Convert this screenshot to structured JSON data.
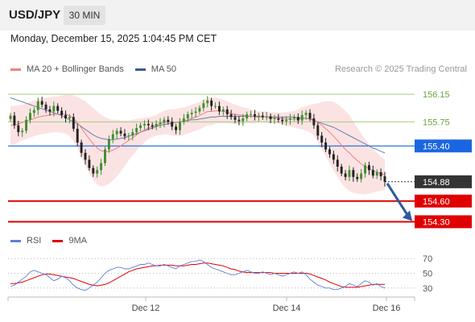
{
  "header": {
    "symbol": "USD/JPY",
    "timeframe": "30 MIN"
  },
  "timestamp": "Monday, December 15, 2025 1:04:45 PM CET",
  "legend": {
    "main": [
      {
        "label": "MA 20 + Bollinger Bands",
        "color": "#f08080"
      },
      {
        "label": "MA 50",
        "color": "#3c5a9a"
      }
    ],
    "rsi": [
      {
        "label": "RSI",
        "color": "#5b7fd6"
      },
      {
        "label": "9MA",
        "color": "#e00000"
      }
    ]
  },
  "copyright": "Research © 2025 Trading Central",
  "chart_data": [
    {
      "type": "candlestick",
      "ylim": [
        154.2,
        156.35
      ],
      "x_ticks": [
        "Dec 12",
        "Dec 14",
        "Dec 16"
      ],
      "levels": [
        {
          "value": 156.15,
          "label": "156.15",
          "kind": "resistance",
          "color": "#a8cc80"
        },
        {
          "value": 155.75,
          "label": "155.75",
          "kind": "resistance",
          "color": "#a8cc80"
        },
        {
          "value": 155.4,
          "label": "155.40",
          "kind": "pivot",
          "color": "#1a66e0"
        },
        {
          "value": 154.88,
          "label": "154.88",
          "kind": "last",
          "color": "#333333"
        },
        {
          "value": 154.6,
          "label": "154.60",
          "kind": "target",
          "color": "#e00000"
        },
        {
          "value": 154.3,
          "label": "154.30",
          "kind": "target",
          "color": "#e00000"
        }
      ],
      "close": [
        155.84,
        155.7,
        155.6,
        155.62,
        155.78,
        155.88,
        155.92,
        156.05,
        156.0,
        155.93,
        155.9,
        155.98,
        155.91,
        155.85,
        155.8,
        155.82,
        155.65,
        155.45,
        155.3,
        155.2,
        155.08,
        155.0,
        155.05,
        155.15,
        155.35,
        155.5,
        155.57,
        155.62,
        155.58,
        155.54,
        155.55,
        155.6,
        155.66,
        155.7,
        155.72,
        155.7,
        155.68,
        155.72,
        155.74,
        155.78,
        155.75,
        155.68,
        155.63,
        155.75,
        155.8,
        155.86,
        155.88,
        155.9,
        155.95,
        156.02,
        156.06,
        155.98,
        155.98,
        155.9,
        155.93,
        155.86,
        155.82,
        155.78,
        155.76,
        155.8,
        155.86,
        155.86,
        155.83,
        155.84,
        155.82,
        155.83,
        155.79,
        155.8,
        155.78,
        155.76,
        155.78,
        155.8,
        155.82,
        155.77,
        155.85,
        155.88,
        155.8,
        155.7,
        155.55,
        155.45,
        155.35,
        155.28,
        155.2,
        155.1,
        155.0,
        154.95,
        155.05,
        154.95,
        154.92,
        155.0,
        155.12,
        155.05,
        154.97,
        155.02,
        154.96,
        154.88
      ],
      "ma20": [
        155.7,
        155.7,
        155.72,
        155.74,
        155.76,
        155.78,
        155.8,
        155.82,
        155.83,
        155.84,
        155.85,
        155.86,
        155.86,
        155.86,
        155.86,
        155.84,
        155.8,
        155.74,
        155.66,
        155.58,
        155.5,
        155.43,
        155.37,
        155.33,
        155.32,
        155.32,
        155.34,
        155.37,
        155.4,
        155.44,
        155.48,
        155.52,
        155.56,
        155.6,
        155.63,
        155.66,
        155.68,
        155.7,
        155.72,
        155.74,
        155.75,
        155.74,
        155.74,
        155.75,
        155.76,
        155.78,
        155.8,
        155.82,
        155.84,
        155.87,
        155.9,
        155.9,
        155.91,
        155.91,
        155.9,
        155.89,
        155.87,
        155.86,
        155.85,
        155.84,
        155.84,
        155.83,
        155.82,
        155.82,
        155.82,
        155.82,
        155.81,
        155.81,
        155.8,
        155.8,
        155.79,
        155.79,
        155.79,
        155.79,
        155.8,
        155.8,
        155.8,
        155.78,
        155.74,
        155.7,
        155.65,
        155.6,
        155.54,
        155.48,
        155.41,
        155.35,
        155.3,
        155.24,
        155.19,
        155.14,
        155.1,
        155.07,
        155.04,
        155.02,
        155.0,
        154.98
      ],
      "ma50": [
        156.1,
        156.08,
        156.06,
        156.04,
        156.02,
        156.0,
        155.98,
        155.96,
        155.94,
        155.92,
        155.9,
        155.88,
        155.86,
        155.84,
        155.81,
        155.78,
        155.75,
        155.72,
        155.68,
        155.64,
        155.6,
        155.56,
        155.53,
        155.51,
        155.5,
        155.49,
        155.49,
        155.5,
        155.51,
        155.52,
        155.54,
        155.56,
        155.58,
        155.6,
        155.62,
        155.64,
        155.66,
        155.68,
        155.7,
        155.71,
        155.72,
        155.73,
        155.74,
        155.75,
        155.76,
        155.77,
        155.78,
        155.78,
        155.79,
        155.8,
        155.81,
        155.82,
        155.82,
        155.83,
        155.83,
        155.83,
        155.83,
        155.83,
        155.83,
        155.83,
        155.83,
        155.83,
        155.83,
        155.83,
        155.82,
        155.82,
        155.82,
        155.82,
        155.82,
        155.82,
        155.82,
        155.82,
        155.82,
        155.81,
        155.81,
        155.8,
        155.79,
        155.77,
        155.75,
        155.73,
        155.71,
        155.69,
        155.67,
        155.64,
        155.61,
        155.58,
        155.55,
        155.52,
        155.49,
        155.46,
        155.43,
        155.4,
        155.37,
        155.35,
        155.32,
        155.3
      ],
      "band_width": [
        0.28,
        0.28,
        0.27,
        0.26,
        0.26,
        0.26,
        0.26,
        0.26,
        0.26,
        0.26,
        0.26,
        0.26,
        0.26,
        0.27,
        0.28,
        0.3,
        0.33,
        0.37,
        0.42,
        0.47,
        0.5,
        0.52,
        0.53,
        0.52,
        0.5,
        0.47,
        0.44,
        0.41,
        0.37,
        0.33,
        0.29,
        0.26,
        0.23,
        0.2,
        0.18,
        0.16,
        0.15,
        0.15,
        0.16,
        0.17,
        0.18,
        0.19,
        0.2,
        0.2,
        0.2,
        0.2,
        0.2,
        0.2,
        0.2,
        0.2,
        0.2,
        0.2,
        0.19,
        0.18,
        0.17,
        0.16,
        0.15,
        0.14,
        0.13,
        0.12,
        0.11,
        0.1,
        0.09,
        0.08,
        0.08,
        0.08,
        0.08,
        0.08,
        0.08,
        0.09,
        0.1,
        0.11,
        0.12,
        0.14,
        0.16,
        0.18,
        0.2,
        0.23,
        0.28,
        0.34,
        0.4,
        0.45,
        0.5,
        0.53,
        0.55,
        0.56,
        0.55,
        0.52,
        0.48,
        0.44,
        0.4,
        0.36,
        0.32,
        0.28,
        0.25,
        0.22
      ]
    },
    {
      "type": "line",
      "title": "RSI",
      "ylim": [
        20,
        80
      ],
      "y_ticks": [
        30,
        50,
        70
      ],
      "series": [
        {
          "name": "RSI",
          "values": [
            32,
            34,
            38,
            42,
            46,
            52,
            54,
            52,
            50,
            48,
            44,
            40,
            42,
            46,
            44,
            40,
            34,
            30,
            28,
            27,
            30,
            34,
            38,
            44,
            50,
            54,
            56,
            58,
            58,
            56,
            56,
            58,
            60,
            62,
            62,
            64,
            62,
            60,
            60,
            62,
            60,
            58,
            56,
            60,
            62,
            64,
            66,
            66,
            68,
            66,
            62,
            58,
            56,
            54,
            52,
            50,
            48,
            48,
            50,
            52,
            54,
            52,
            50,
            50,
            52,
            50,
            48,
            50,
            48,
            46,
            48,
            50,
            52,
            50,
            52,
            48,
            42,
            38,
            34,
            32,
            30,
            30,
            28,
            28,
            30,
            32,
            36,
            34,
            32,
            36,
            40,
            38,
            34,
            36,
            32,
            30
          ]
        },
        {
          "name": "9MA",
          "values": [
            36,
            36,
            37,
            38,
            40,
            42,
            44,
            46,
            48,
            49,
            49,
            48,
            47,
            46,
            45,
            44,
            43,
            41,
            39,
            37,
            35,
            34,
            33,
            34,
            35,
            37,
            40,
            43,
            46,
            49,
            52,
            54,
            56,
            57,
            58,
            59,
            60,
            60,
            61,
            61,
            61,
            61,
            60,
            60,
            60,
            61,
            62,
            62,
            63,
            64,
            64,
            63,
            62,
            61,
            60,
            58,
            56,
            55,
            53,
            52,
            51,
            51,
            51,
            51,
            51,
            51,
            51,
            50,
            50,
            50,
            50,
            50,
            50,
            50,
            50,
            50,
            49,
            47,
            45,
            43,
            41,
            38,
            36,
            34,
            32,
            31,
            31,
            31,
            31,
            32,
            33,
            34,
            35,
            35,
            35,
            35
          ]
        }
      ]
    }
  ]
}
